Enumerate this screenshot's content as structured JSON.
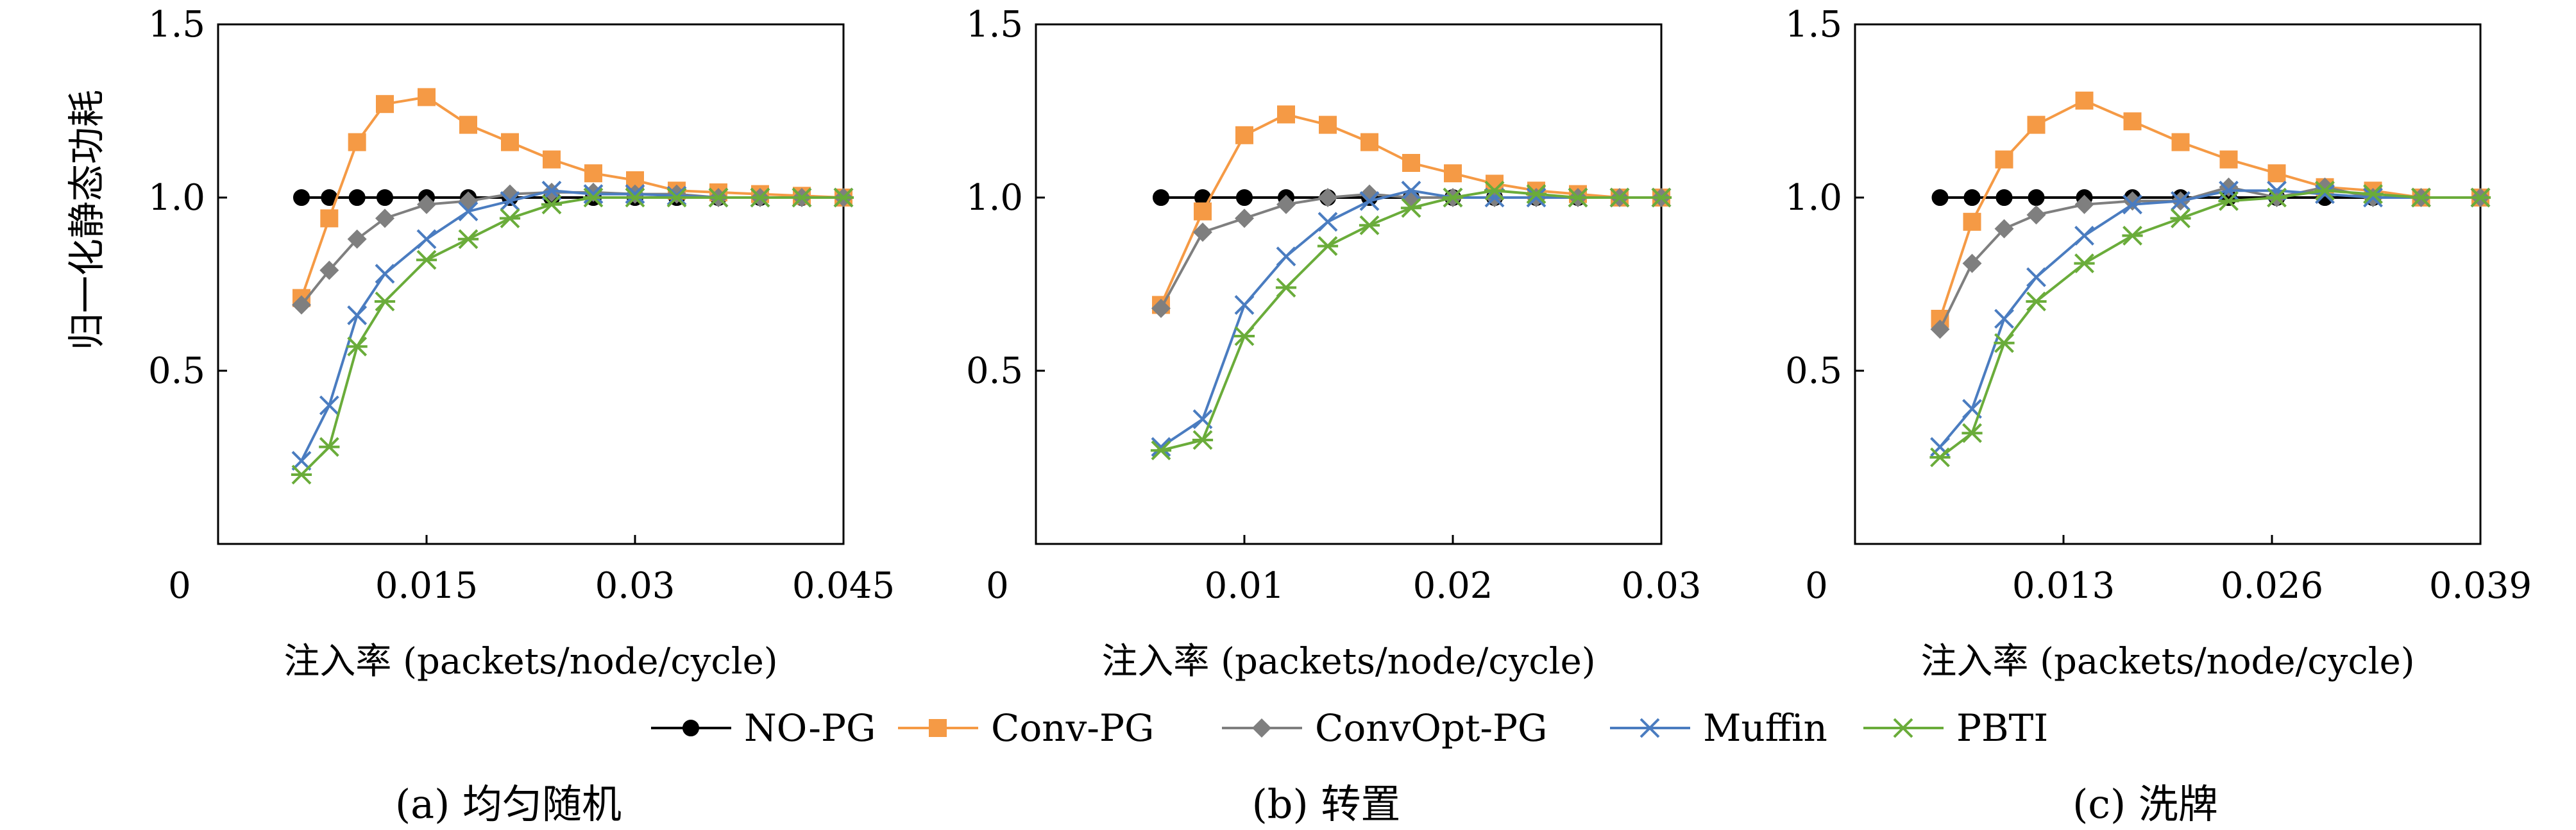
{
  "chart_data": [
    {
      "type": "line",
      "caption": "(a) 均匀随机",
      "ylabel": "归一化静态功耗",
      "xlabel": "注入率 (packets/node/cycle)",
      "xlim": [
        0,
        0.045
      ],
      "ylim": [
        0,
        1.5
      ],
      "xticks": [
        0,
        0.015,
        0.03,
        0.045
      ],
      "xtick_labels": [
        "0",
        "0.015",
        "0.03",
        "0.045"
      ],
      "yticks": [
        0.5,
        1.0,
        1.5
      ],
      "ytick_labels": [
        "0.5",
        "1.0",
        "1.5"
      ],
      "x": [
        0.006,
        0.008,
        0.01,
        0.012,
        0.015,
        0.018,
        0.021,
        0.024,
        0.027,
        0.03,
        0.033,
        0.036,
        0.039,
        0.042,
        0.045
      ],
      "series": [
        {
          "name": "NO-PG",
          "values": [
            1.0,
            1.0,
            1.0,
            1.0,
            1.0,
            1.0,
            1.0,
            1.0,
            1.0,
            1.0,
            1.0,
            1.0,
            1.0,
            1.0,
            1.0
          ]
        },
        {
          "name": "Conv-PG",
          "values": [
            0.71,
            0.94,
            1.16,
            1.27,
            1.29,
            1.21,
            1.16,
            1.11,
            1.07,
            1.05,
            1.02,
            1.015,
            1.01,
            1.005,
            1.0
          ]
        },
        {
          "name": "ConvOpt-PG",
          "values": [
            0.69,
            0.79,
            0.88,
            0.94,
            0.98,
            0.99,
            1.01,
            1.015,
            1.015,
            1.01,
            1.01,
            1.0,
            1.0,
            1.0,
            1.0
          ]
        },
        {
          "name": "Muffin",
          "values": [
            0.24,
            0.4,
            0.66,
            0.78,
            0.88,
            0.96,
            0.99,
            1.02,
            1.01,
            1.01,
            1.005,
            1.0,
            1.0,
            1.0,
            1.0
          ]
        },
        {
          "name": "PBTI",
          "values": [
            0.2,
            0.28,
            0.57,
            0.7,
            0.82,
            0.88,
            0.94,
            0.98,
            1.0,
            1.0,
            1.0,
            1.0,
            1.0,
            1.0,
            1.0
          ]
        }
      ]
    },
    {
      "type": "line",
      "caption": "(b) 转置",
      "xlabel": "注入率 (packets/node/cycle)",
      "xlim": [
        0,
        0.03
      ],
      "ylim": [
        0,
        1.5
      ],
      "xticks": [
        0,
        0.01,
        0.02,
        0.03
      ],
      "xtick_labels": [
        "0",
        "0.01",
        "0.02",
        "0.03"
      ],
      "yticks": [
        0.5,
        1.0,
        1.5
      ],
      "ytick_labels": [
        "0.5",
        "1.0",
        "1.5"
      ],
      "x": [
        0.006,
        0.008,
        0.01,
        0.012,
        0.014,
        0.016,
        0.018,
        0.02,
        0.022,
        0.024,
        0.026,
        0.028,
        0.03
      ],
      "series": [
        {
          "name": "NO-PG",
          "values": [
            1.0,
            1.0,
            1.0,
            1.0,
            1.0,
            1.0,
            1.0,
            1.0,
            1.0,
            1.0,
            1.0,
            1.0,
            1.0
          ]
        },
        {
          "name": "Conv-PG",
          "values": [
            0.69,
            0.96,
            1.18,
            1.24,
            1.21,
            1.16,
            1.1,
            1.07,
            1.04,
            1.02,
            1.01,
            1.0,
            1.0
          ]
        },
        {
          "name": "ConvOpt-PG",
          "values": [
            0.68,
            0.9,
            0.94,
            0.98,
            1.0,
            1.01,
            1.0,
            1.0,
            1.0,
            1.0,
            1.0,
            1.0,
            1.0
          ]
        },
        {
          "name": "Muffin",
          "values": [
            0.28,
            0.36,
            0.69,
            0.83,
            0.93,
            0.99,
            1.02,
            1.0,
            1.0,
            1.0,
            1.0,
            1.0,
            1.0
          ]
        },
        {
          "name": "PBTI",
          "values": [
            0.27,
            0.3,
            0.6,
            0.74,
            0.86,
            0.92,
            0.97,
            1.0,
            1.02,
            1.01,
            1.0,
            1.0,
            1.0
          ]
        }
      ]
    },
    {
      "type": "line",
      "caption": "(c) 洗牌",
      "xlabel": "注入率 (packets/node/cycle)",
      "xlim": [
        0,
        0.039
      ],
      "ylim": [
        0,
        1.5
      ],
      "xticks": [
        0,
        0.013,
        0.026,
        0.039
      ],
      "xtick_labels": [
        "0",
        "0.013",
        "0.026",
        "0.039"
      ],
      "yticks": [
        0.5,
        1.0,
        1.5
      ],
      "ytick_labels": [
        "0.5",
        "1.0",
        "1.5"
      ],
      "x": [
        0.0053,
        0.0073,
        0.0093,
        0.0113,
        0.0143,
        0.0173,
        0.0203,
        0.0233,
        0.0263,
        0.0293,
        0.0323,
        0.0353,
        0.039
      ],
      "series": [
        {
          "name": "NO-PG",
          "values": [
            1.0,
            1.0,
            1.0,
            1.0,
            1.0,
            1.0,
            1.0,
            1.0,
            1.0,
            1.0,
            1.0,
            1.0,
            1.0
          ]
        },
        {
          "name": "Conv-PG",
          "values": [
            0.65,
            0.93,
            1.11,
            1.21,
            1.28,
            1.22,
            1.16,
            1.11,
            1.07,
            1.03,
            1.02,
            1.0,
            1.0
          ]
        },
        {
          "name": "ConvOpt-PG",
          "values": [
            0.62,
            0.81,
            0.91,
            0.95,
            0.98,
            0.99,
            0.99,
            1.03,
            1.0,
            1.03,
            1.0,
            1.0,
            1.0
          ]
        },
        {
          "name": "Muffin",
          "values": [
            0.28,
            0.39,
            0.65,
            0.77,
            0.89,
            0.98,
            0.99,
            1.02,
            1.02,
            1.01,
            1.0,
            1.0,
            1.0
          ]
        },
        {
          "name": "PBTI",
          "values": [
            0.25,
            0.32,
            0.58,
            0.7,
            0.81,
            0.89,
            0.94,
            0.99,
            1.0,
            1.02,
            1.01,
            1.0,
            1.0
          ]
        }
      ]
    }
  ],
  "legend": {
    "placement": "bottom-center",
    "items": [
      {
        "name": "NO-PG",
        "color": "#000000",
        "marker": "circle"
      },
      {
        "name": "Conv-PG",
        "color": "#f59a45",
        "marker": "square"
      },
      {
        "name": "ConvOpt-PG",
        "color": "#7f7f7f",
        "marker": "diamond"
      },
      {
        "name": "Muffin",
        "color": "#4a7cc0",
        "marker": "x"
      },
      {
        "name": "PBTI",
        "color": "#6aac3a",
        "marker": "asterisk"
      }
    ]
  }
}
